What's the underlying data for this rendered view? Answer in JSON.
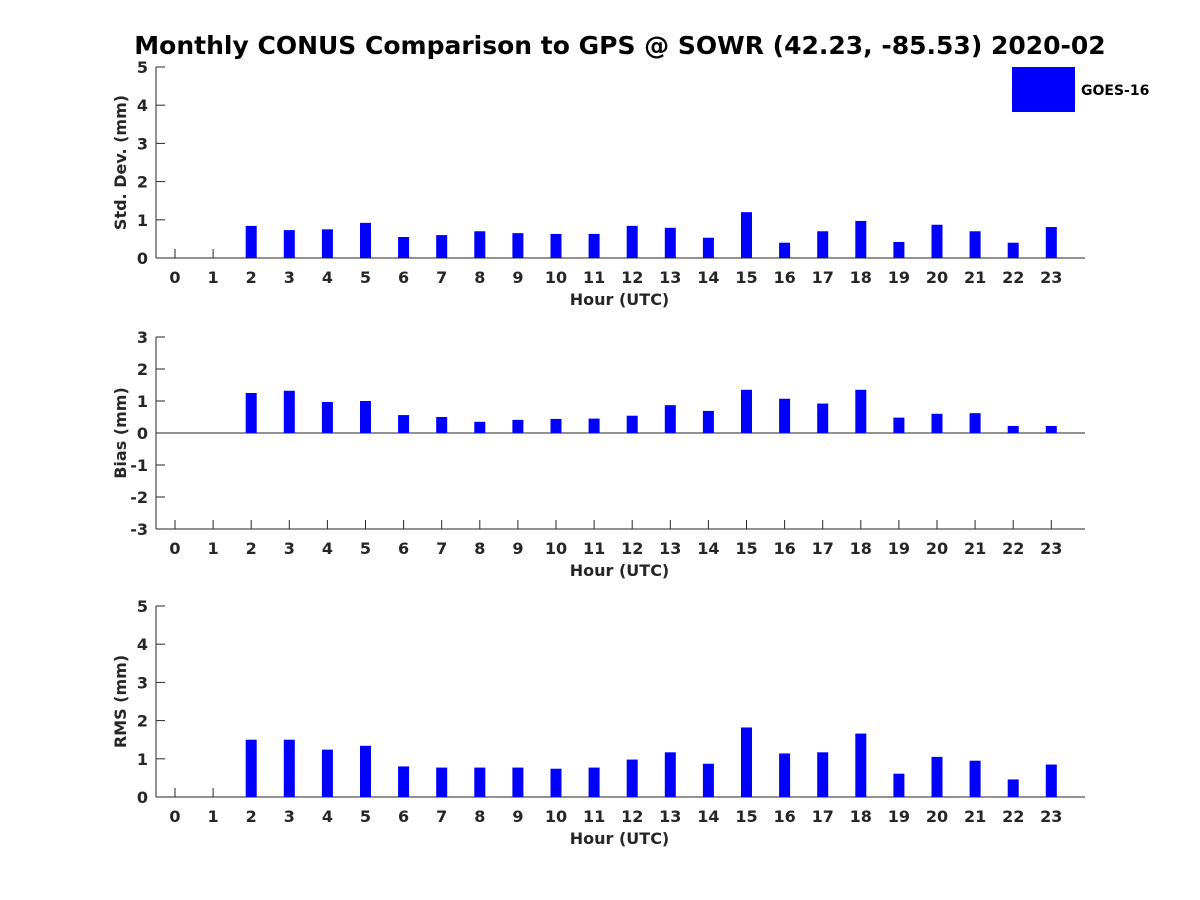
{
  "chart_data": {
    "type": "bar",
    "title": "Monthly CONUS Comparison to GPS @ SOWR (42.23, -85.53) 2020-02",
    "legend": {
      "label": "GOES-16",
      "color": "#0000ff",
      "placement": "top-right"
    },
    "categories": [
      "0",
      "1",
      "2",
      "3",
      "4",
      "5",
      "6",
      "7",
      "8",
      "9",
      "10",
      "11",
      "12",
      "13",
      "14",
      "15",
      "16",
      "17",
      "18",
      "19",
      "20",
      "21",
      "22",
      "23"
    ],
    "panels": [
      {
        "id": "std",
        "ylabel": "Std. Dev. (mm)",
        "xlabel": "Hour (UTC)",
        "ylim": [
          0,
          5
        ],
        "yticks": [
          0,
          1,
          2,
          3,
          4,
          5
        ],
        "series": [
          {
            "name": "GOES-16",
            "values": [
              null,
              null,
              0.84,
              0.73,
              0.75,
              0.92,
              0.55,
              0.6,
              0.7,
              0.65,
              0.63,
              0.63,
              0.84,
              0.79,
              0.53,
              1.2,
              0.4,
              0.7,
              0.97,
              0.42,
              0.87,
              0.7,
              0.4,
              0.81
            ]
          }
        ]
      },
      {
        "id": "bias",
        "ylabel": "Bias (mm)",
        "xlabel": "Hour (UTC)",
        "ylim": [
          -3,
          3
        ],
        "yticks": [
          -3,
          -2,
          -1,
          0,
          1,
          2,
          3
        ],
        "series": [
          {
            "name": "GOES-16",
            "values": [
              null,
              null,
              1.25,
              1.32,
              0.97,
              1.0,
              0.56,
              0.5,
              0.35,
              0.41,
              0.44,
              0.45,
              0.54,
              0.87,
              0.69,
              1.35,
              1.07,
              0.92,
              1.35,
              0.48,
              0.6,
              0.62,
              0.22,
              0.22
            ]
          }
        ]
      },
      {
        "id": "rms",
        "ylabel": "RMS (mm)",
        "xlabel": "Hour (UTC)",
        "ylim": [
          0,
          5
        ],
        "yticks": [
          0,
          1,
          2,
          3,
          4,
          5
        ],
        "series": [
          {
            "name": "GOES-16",
            "values": [
              null,
              null,
              1.5,
              1.5,
              1.24,
              1.34,
              0.8,
              0.77,
              0.77,
              0.77,
              0.74,
              0.77,
              0.98,
              1.17,
              0.87,
              1.82,
              1.14,
              1.17,
              1.66,
              0.61,
              1.05,
              0.95,
              0.46,
              0.85
            ]
          }
        ]
      }
    ]
  }
}
